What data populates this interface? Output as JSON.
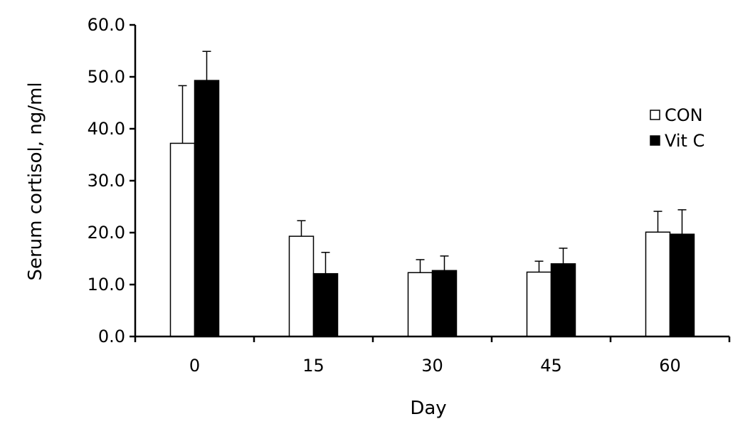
{
  "chart_data": {
    "type": "bar",
    "xlabel": "Day",
    "ylabel": "Serum cortisol,  ng/ml",
    "ylim": [
      0,
      60
    ],
    "yticks": [
      "0.0",
      "10.0",
      "20.0",
      "30.0",
      "40.0",
      "50.0",
      "60.0"
    ],
    "categories": [
      "0",
      "15",
      "30",
      "45",
      "60"
    ],
    "legend_position": "right",
    "error_bars": "upper",
    "series": [
      {
        "name": "CON",
        "fill": "#ffffff",
        "stroke": "#000000",
        "values": [
          37.2,
          19.3,
          12.3,
          12.4,
          20.1
        ],
        "errors": [
          11.1,
          3.0,
          2.5,
          2.1,
          4.0
        ]
      },
      {
        "name": "Vit C",
        "fill": "#000000",
        "stroke": "#000000",
        "values": [
          49.3,
          12.1,
          12.7,
          14.0,
          19.7
        ],
        "errors": [
          5.6,
          4.1,
          2.8,
          3.0,
          4.7
        ]
      }
    ]
  }
}
